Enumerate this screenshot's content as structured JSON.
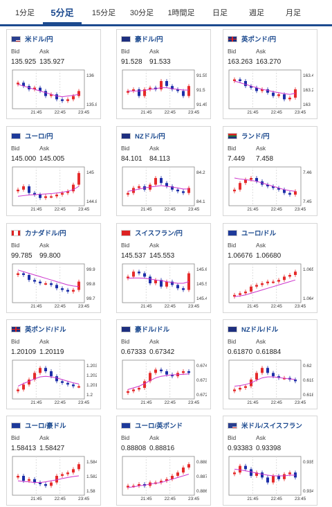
{
  "tabs": [
    {
      "label": "1分足",
      "active": false
    },
    {
      "label": "5分足",
      "active": true
    },
    {
      "label": "15分足",
      "active": false
    },
    {
      "label": "30分足",
      "active": false
    },
    {
      "label": "1時間足",
      "active": false
    },
    {
      "label": "日足",
      "active": false
    },
    {
      "label": "週足",
      "active": false
    },
    {
      "label": "月足",
      "active": false
    }
  ],
  "labels": {
    "bid": "Bid",
    "ask": "Ask"
  },
  "colors": {
    "accent": "#1c4a8f",
    "up": "#e52b2b",
    "down": "#1c2ea8",
    "ma": "#cc33cc",
    "ma2": "#33bbcc"
  },
  "cards": [
    {
      "pair": "米ドル/円",
      "flag": "us",
      "bid": "135.925",
      "ask": "135.927",
      "x_ticks": [
        "21:45",
        "22:45",
        "23:45"
      ],
      "y_ticks": [
        "136",
        "135.8"
      ],
      "trend": [
        0.7,
        0.6,
        0.5,
        0.55,
        0.45,
        0.3,
        0.35,
        0.2,
        0.15,
        0.2,
        0.3,
        0.45
      ],
      "ma": [
        0.65,
        0.6,
        0.55,
        0.5,
        0.45,
        0.4,
        0.35,
        0.3,
        0.28,
        0.3,
        0.32,
        0.35
      ]
    },
    {
      "pair": "豪ドル/円",
      "flag": "au",
      "bid": "91.528",
      "ask": "91.533",
      "x_ticks": [
        "21:45",
        "22:45",
        "23:45"
      ],
      "y_ticks": [
        "91.55",
        "91.5",
        "91.45"
      ],
      "trend": [
        0.45,
        0.5,
        0.3,
        0.5,
        0.55,
        0.5,
        0.75,
        0.6,
        0.5,
        0.45,
        0.3,
        0.6
      ],
      "ma": [
        0.45,
        0.45,
        0.45,
        0.47,
        0.5,
        0.52,
        0.55,
        0.55,
        0.52,
        0.5,
        0.48,
        0.48
      ]
    },
    {
      "pair": "英ポンド/円",
      "flag": "gb",
      "bid": "163.263",
      "ask": "163.270",
      "x_ticks": [
        "21:45",
        "22:45",
        "23:45"
      ],
      "y_ticks": [
        "163.4",
        "163.2",
        "163"
      ],
      "trend": [
        0.8,
        0.75,
        0.6,
        0.55,
        0.45,
        0.5,
        0.4,
        0.3,
        0.35,
        0.2,
        0.25,
        0.5
      ],
      "ma": [
        0.75,
        0.7,
        0.65,
        0.6,
        0.55,
        0.5,
        0.47,
        0.43,
        0.4,
        0.37,
        0.35,
        0.38
      ]
    },
    {
      "pair": "ユーロ/円",
      "flag": "eu",
      "bid": "145.000",
      "ask": "145.005",
      "x_ticks": [
        "21:45",
        "22:45",
        "23:45"
      ],
      "y_ticks": [
        "145",
        "144.8"
      ],
      "trend": [
        0.4,
        0.5,
        0.3,
        0.25,
        0.15,
        0.2,
        0.2,
        0.25,
        0.3,
        0.35,
        0.55,
        0.9
      ],
      "ma": [
        0.2,
        0.22,
        0.24,
        0.25,
        0.26,
        0.27,
        0.28,
        0.3,
        0.32,
        0.35,
        0.4,
        0.5
      ]
    },
    {
      "pair": "NZドル/円",
      "flag": "nz",
      "bid": "84.101",
      "ask": "84.113",
      "x_ticks": [
        "21:45",
        "22:45",
        "23:45"
      ],
      "y_ticks": [
        "84.2",
        "84.1"
      ],
      "trend": [
        0.3,
        0.45,
        0.5,
        0.4,
        0.55,
        0.75,
        0.6,
        0.5,
        0.4,
        0.35,
        0.3,
        0.45
      ],
      "ma": [
        0.35,
        0.38,
        0.42,
        0.45,
        0.48,
        0.5,
        0.52,
        0.5,
        0.48,
        0.45,
        0.42,
        0.42
      ]
    },
    {
      "pair": "ランド/円",
      "flag": "za",
      "bid": "7.449",
      "ask": "7.458",
      "x_ticks": [
        "21:45",
        "22:45",
        "23:45"
      ],
      "y_ticks": [
        "7.46",
        "7.45"
      ],
      "trend": [
        0.4,
        0.6,
        0.7,
        0.75,
        0.65,
        0.55,
        0.5,
        0.45,
        0.4,
        0.3,
        0.25,
        0.35
      ],
      "ma": [
        0.75,
        0.72,
        0.7,
        0.68,
        0.65,
        0.6,
        0.55,
        0.5,
        0.45,
        0.4,
        0.37,
        0.35
      ]
    },
    {
      "pair": "カナダドル/円",
      "flag": "ca",
      "bid": "99.785",
      "ask": "99.800",
      "x_ticks": [
        "21:45",
        "22:45",
        "23:45"
      ],
      "y_ticks": [
        "99.9",
        "99.8",
        "99.7"
      ],
      "trend": [
        0.8,
        0.75,
        0.6,
        0.55,
        0.5,
        0.5,
        0.45,
        0.35,
        0.3,
        0.25,
        0.3,
        0.55
      ],
      "ma": [
        0.9,
        0.85,
        0.8,
        0.75,
        0.7,
        0.65,
        0.6,
        0.55,
        0.5,
        0.45,
        0.42,
        0.4
      ]
    },
    {
      "pair": "スイスフラン/円",
      "flag": "ch",
      "bid": "145.537",
      "ask": "145.553",
      "x_ticks": [
        "21:45",
        "22:45",
        "23:45"
      ],
      "y_ticks": [
        "145.6",
        "145.5",
        "145.4"
      ],
      "trend": [
        0.7,
        0.85,
        0.8,
        0.7,
        0.5,
        0.6,
        0.4,
        0.55,
        0.45,
        0.35,
        0.3,
        0.8
      ],
      "ma": [
        0.65,
        0.66,
        0.66,
        0.65,
        0.63,
        0.6,
        0.58,
        0.55,
        0.52,
        0.5,
        0.5,
        0.55
      ]
    },
    {
      "pair": "ユーロ/ドル",
      "flag": "eu",
      "bid": "1.06676",
      "ask": "1.06680",
      "x_ticks": [
        "21:45",
        "22:45",
        "23:45"
      ],
      "y_ticks": [
        "1.065",
        "1.064"
      ],
      "trend": [
        0.15,
        0.2,
        0.25,
        0.4,
        0.45,
        0.5,
        0.55,
        0.55,
        0.6,
        0.7,
        0.75,
        0.85
      ],
      "ma": [
        0.1,
        0.12,
        0.15,
        0.2,
        0.25,
        0.3,
        0.35,
        0.4,
        0.45,
        0.5,
        0.55,
        0.6
      ]
    },
    {
      "pair": "英ポンド/ドル",
      "flag": "gb",
      "bid": "1.20109",
      "ask": "1.20119",
      "x_ticks": [
        "21:45",
        "22:45",
        "23:45"
      ],
      "y_ticks": [
        "1.203",
        "1.202",
        "1.201",
        "1.2"
      ],
      "trend": [
        0.2,
        0.35,
        0.5,
        0.7,
        0.85,
        0.75,
        0.6,
        0.45,
        0.4,
        0.35,
        0.3,
        0.3
      ],
      "ma": [
        0.3,
        0.38,
        0.45,
        0.52,
        0.58,
        0.6,
        0.58,
        0.55,
        0.5,
        0.45,
        0.4,
        0.37
      ]
    },
    {
      "pair": "豪ドル/ドル",
      "flag": "au",
      "bid": "0.67333",
      "ask": "0.67342",
      "x_ticks": [
        "21:45",
        "22:45",
        "23:45"
      ],
      "y_ticks": [
        "0.674",
        "0.673",
        "0.672"
      ],
      "trend": [
        0.15,
        0.2,
        0.25,
        0.45,
        0.7,
        0.8,
        0.75,
        0.65,
        0.6,
        0.7,
        0.75,
        0.7
      ],
      "ma": [
        0.2,
        0.25,
        0.3,
        0.38,
        0.47,
        0.55,
        0.6,
        0.62,
        0.64,
        0.65,
        0.66,
        0.67
      ]
    },
    {
      "pair": "NZドル/ドル",
      "flag": "nz",
      "bid": "0.61870",
      "ask": "0.61884",
      "x_ticks": [
        "21:45",
        "22:45",
        "23:45"
      ],
      "y_ticks": [
        "0.62",
        "0.619",
        "0.618"
      ],
      "trend": [
        0.2,
        0.25,
        0.3,
        0.5,
        0.7,
        0.85,
        0.7,
        0.6,
        0.55,
        0.55,
        0.5,
        0.45
      ],
      "ma": [
        0.3,
        0.32,
        0.35,
        0.4,
        0.48,
        0.55,
        0.58,
        0.58,
        0.56,
        0.54,
        0.52,
        0.5
      ]
    },
    {
      "pair": "ユーロ/豪ドル",
      "flag": "eu",
      "bid": "1.58413",
      "ask": "1.58427",
      "x_ticks": [
        "21:45",
        "22:45",
        "23:45"
      ],
      "y_ticks": [
        "1.584",
        "1.582",
        "1.58"
      ],
      "trend": [
        0.5,
        0.35,
        0.4,
        0.3,
        0.25,
        0.2,
        0.3,
        0.5,
        0.55,
        0.6,
        0.7,
        0.85
      ],
      "ma": [
        0.35,
        0.33,
        0.32,
        0.3,
        0.3,
        0.32,
        0.35,
        0.38,
        0.42,
        0.45,
        0.48,
        0.5
      ]
    },
    {
      "pair": "ユーロ/英ポンド",
      "flag": "eu",
      "bid": "0.88808",
      "ask": "0.88816",
      "x_ticks": [
        "21:45",
        "22:45",
        "23:45"
      ],
      "y_ticks": [
        "0.888",
        "0.887",
        "0.886"
      ],
      "trend": [
        0.2,
        0.2,
        0.25,
        0.2,
        0.3,
        0.3,
        0.35,
        0.4,
        0.5,
        0.6,
        0.75,
        0.85
      ],
      "ma": [
        0.15,
        0.17,
        0.2,
        0.22,
        0.25,
        0.28,
        0.3,
        0.35,
        0.4,
        0.45,
        0.5,
        0.55
      ]
    },
    {
      "pair": "米ドル/スイスフラン",
      "flag": "us",
      "bid": "0.93383",
      "ask": "0.93398",
      "x_ticks": [
        "21:45",
        "22:45",
        "23:45"
      ],
      "y_ticks": [
        "0.935",
        "0.934"
      ],
      "trend": [
        0.6,
        0.8,
        0.7,
        0.5,
        0.6,
        0.45,
        0.3,
        0.5,
        0.4,
        0.55,
        0.6,
        0.45
      ],
      "ma": [
        0.7,
        0.68,
        0.65,
        0.62,
        0.58,
        0.55,
        0.52,
        0.5,
        0.5,
        0.5,
        0.52,
        0.52
      ]
    }
  ]
}
